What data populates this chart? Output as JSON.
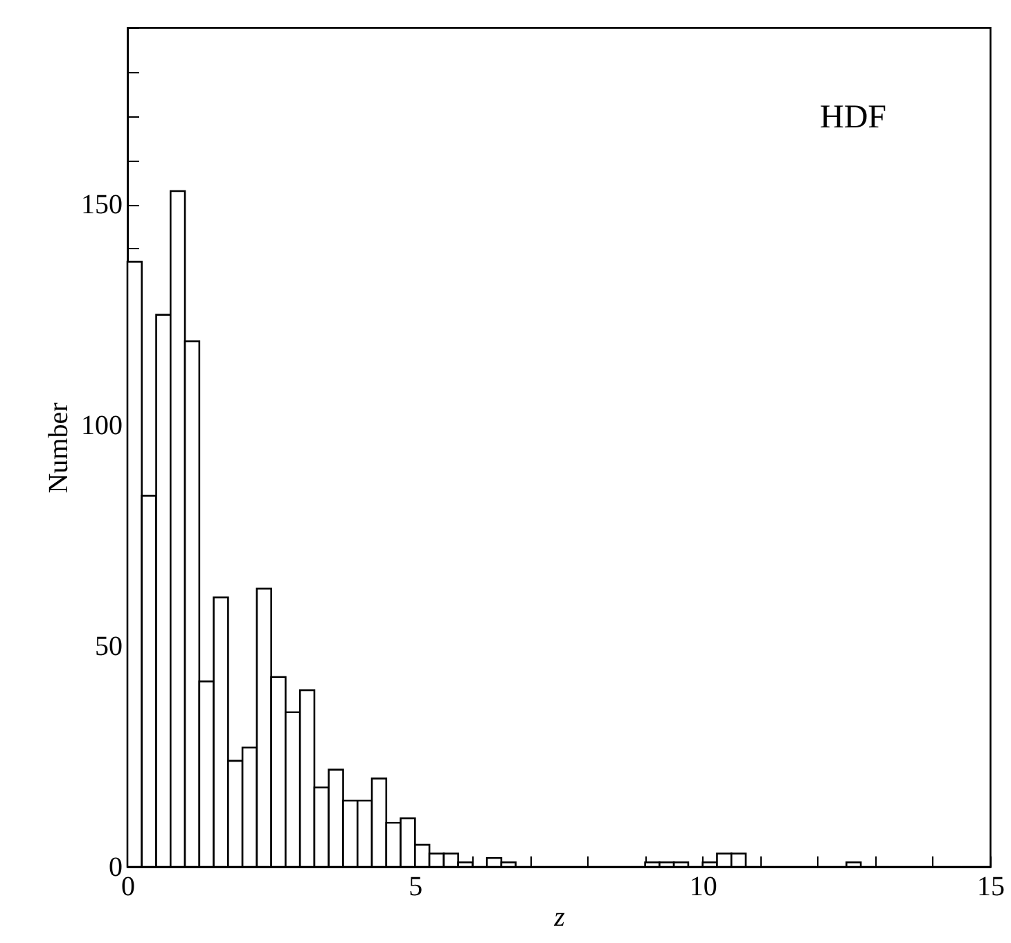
{
  "chart_data": {
    "type": "histogram",
    "xlabel": "z",
    "ylabel": "Number",
    "annotations": [
      "HDF"
    ],
    "bins": [
      0,
      0.25,
      0.5,
      0.75,
      1,
      1.25,
      1.5,
      1.75,
      2,
      2.25,
      2.5,
      2.75,
      3,
      3.25,
      3.5,
      3.75,
      4,
      4.25,
      4.5,
      4.75,
      5,
      5.25,
      5.5,
      5.75,
      6,
      6.25,
      6.5,
      6.75,
      7,
      7.25,
      7.5,
      7.75,
      8,
      8.25,
      8.5,
      8.75,
      9,
      9.25,
      9.5,
      9.75,
      10,
      10.25,
      10.5,
      10.75,
      11,
      11.25,
      11.5,
      11.75,
      12,
      12.25,
      12.5,
      12.75,
      13,
      13.25,
      13.5,
      13.75,
      14,
      14.25,
      14.5,
      14.75,
      15
    ],
    "values": [
      137,
      84,
      125,
      153,
      119,
      42,
      61,
      24,
      27,
      63,
      43,
      35,
      40,
      18,
      22,
      15,
      15,
      20,
      10,
      11,
      5,
      3,
      3,
      1,
      0,
      2,
      1,
      0,
      0,
      0,
      0,
      0,
      0,
      0,
      0,
      0,
      1,
      1,
      1,
      0,
      1,
      3,
      3,
      0,
      0,
      0,
      0,
      0,
      0,
      0,
      1,
      0,
      0,
      0,
      0,
      0,
      0,
      0,
      0,
      0
    ],
    "color": "#000000",
    "xlim": [
      0,
      15
    ],
    "ylim": [
      0,
      190
    ],
    "xticks": [
      0,
      {
        "value": 1,
        "label": null
      },
      {
        "value": 2,
        "label": null
      },
      {
        "value": 3,
        "label": null
      },
      {
        "value": 4,
        "label": null
      },
      5,
      {
        "value": 6,
        "label": null
      },
      {
        "value": 7,
        "label": null
      },
      {
        "value": 8,
        "label": null
      },
      {
        "value": 9,
        "label": null
      },
      10,
      {
        "value": 11,
        "label": null
      },
      {
        "value": 12,
        "label": null
      },
      {
        "value": 13,
        "label": null
      },
      {
        "value": 14,
        "label": null
      },
      15
    ],
    "yticks": [
      0,
      {
        "value": 10,
        "label": null
      },
      {
        "value": 20,
        "label": null
      },
      {
        "value": 30,
        "label": null
      },
      {
        "value": 40,
        "label": null
      },
      50,
      {
        "value": 60,
        "label": null
      },
      {
        "value": 70,
        "label": null
      },
      {
        "value": 80,
        "label": null
      },
      {
        "value": 90,
        "label": null
      },
      100,
      {
        "value": 110,
        "label": null
      },
      {
        "value": 120,
        "label": null
      },
      {
        "value": 130,
        "label": null
      },
      {
        "value": 140,
        "label": null
      },
      150,
      {
        "value": 160,
        "label": null
      },
      {
        "value": 170,
        "label": null
      },
      {
        "value": 180,
        "label": null
      },
      {
        "value": 190,
        "label": null
      }
    ],
    "grid": false
  }
}
